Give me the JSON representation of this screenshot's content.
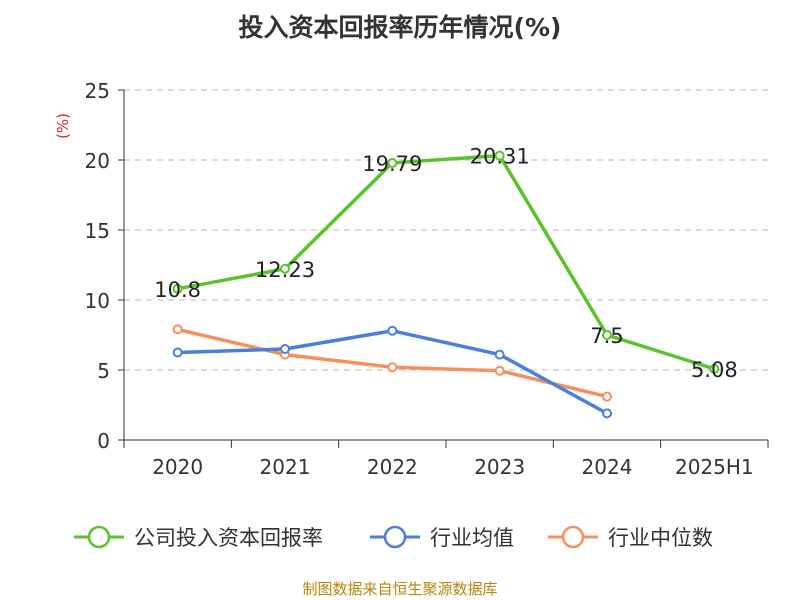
{
  "chart_data": {
    "type": "line",
    "title": "投入资本回报率历年情况(%)",
    "ylabel": "(%)",
    "xlabel": "",
    "categories": [
      "2020",
      "2021",
      "2022",
      "2023",
      "2024",
      "2025H1"
    ],
    "ylim": [
      0,
      25
    ],
    "yticks": [
      0,
      5,
      10,
      15,
      20,
      25
    ],
    "grid": true,
    "legend_position": "bottom",
    "series": [
      {
        "name": "公司投入资本回报率",
        "color": "#5cc22b",
        "values": [
          10.8,
          12.23,
          19.79,
          20.31,
          7.5,
          5.08
        ],
        "labels": [
          "10.8",
          "12.23",
          "19.79",
          "20.31",
          "7.5",
          "5.08"
        ]
      },
      {
        "name": "行业均值",
        "color": "#4a7fdb",
        "values": [
          6.25,
          6.5,
          7.8,
          6.1,
          1.9,
          null
        ],
        "labels": []
      },
      {
        "name": "行业中位数",
        "color": "#f5905e",
        "values": [
          7.9,
          6.1,
          5.2,
          4.95,
          3.1,
          null
        ],
        "labels": []
      }
    ]
  },
  "source_text": "制图数据来自恒生聚源数据库"
}
